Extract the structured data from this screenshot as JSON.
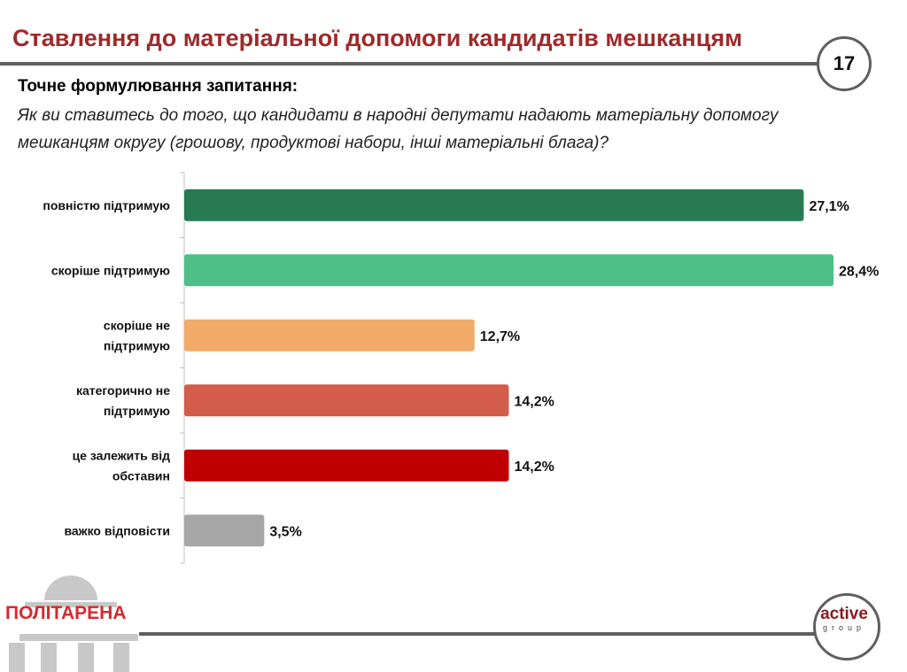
{
  "header": {
    "title": "Ставлення до матеріальної допомоги кандидатів мешканцям",
    "page_number": "17"
  },
  "question": {
    "heading": "Точне формулювання запитання:",
    "text": "Як ви ставитесь до того, що кандидати в народні депутати надають матеріальну допомогу мешканцям округу (грошову, продуктові набори, інші матеріальні блага)?"
  },
  "chart_data": {
    "type": "bar",
    "orientation": "horizontal",
    "title": "",
    "xlabel": "",
    "ylabel": "",
    "xlim": [
      0,
      28.4
    ],
    "grid": false,
    "categories": [
      [
        "повністю підтримую"
      ],
      [
        "скоріше підтримую"
      ],
      [
        "скоріше не",
        "підтримую"
      ],
      [
        "категорично не",
        "підтримую"
      ],
      [
        "це залежить від",
        "обставин"
      ],
      [
        "важко відповісти"
      ]
    ],
    "values": [
      27.1,
      28.4,
      12.7,
      14.2,
      14.2,
      3.5
    ],
    "labels": [
      "27,1%",
      "28,4%",
      "12,7%",
      "14,2%",
      "14,2%",
      "3,5%"
    ],
    "colors": [
      "#277a52",
      "#4dbf86",
      "#f2aa69",
      "#d35c4b",
      "#c00000",
      "#a6a6a6"
    ]
  },
  "logos": {
    "left": "ПОЛІТАРЕНА",
    "right_main": "active",
    "right_sub": "group"
  }
}
